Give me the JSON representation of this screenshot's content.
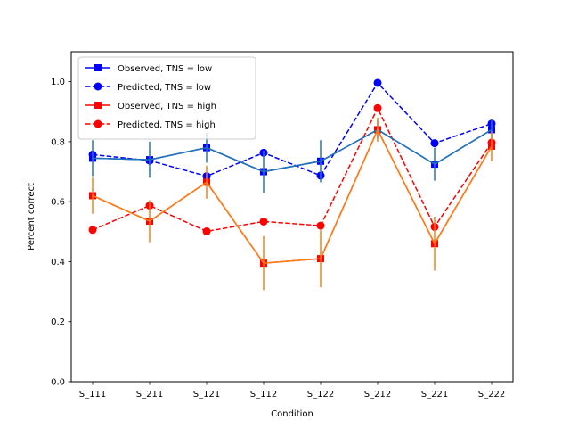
{
  "chart_data": {
    "type": "line",
    "title": "",
    "xlabel": "Condition",
    "ylabel": "Percent correct",
    "ylim": [
      0.0,
      1.1
    ],
    "yticks": [
      0.0,
      0.2,
      0.4,
      0.6,
      0.8,
      1.0
    ],
    "categories": [
      "S_111",
      "S_211",
      "S_121",
      "S_112",
      "S_122",
      "S_212",
      "S_221",
      "S_222"
    ],
    "legend": {
      "position": "top-left"
    },
    "series": [
      {
        "name": "Observed, TNS = low",
        "style": "solid",
        "marker": "square",
        "color": "#0000ff",
        "values": [
          0.745,
          0.74,
          0.78,
          0.7,
          0.735,
          0.84,
          0.725,
          0.84
        ]
      },
      {
        "name": "Predicted, TNS = low",
        "style": "dashed",
        "marker": "circle",
        "color": "#0000ff",
        "values": [
          0.757,
          0.737,
          0.685,
          0.763,
          0.687,
          0.996,
          0.795,
          0.86
        ]
      },
      {
        "name": "Observed, TNS = high",
        "style": "solid",
        "marker": "square",
        "color": "#ff0000",
        "values": [
          0.62,
          0.535,
          0.665,
          0.395,
          0.41,
          0.84,
          0.46,
          0.785
        ]
      },
      {
        "name": "Predicted, TNS = high",
        "style": "dashed",
        "marker": "circle",
        "color": "#ff0000",
        "values": [
          0.506,
          0.587,
          0.501,
          0.534,
          0.52,
          0.912,
          0.516,
          0.797
        ]
      }
    ],
    "error_bars": [
      {
        "of": "Observed, TNS = low",
        "color": "#1f77b4",
        "values": [
          0.745,
          0.74,
          0.78,
          0.7,
          0.735,
          0.84,
          0.725,
          0.84
        ],
        "errors": [
          0.06,
          0.06,
          0.05,
          0.07,
          0.07,
          0.03,
          0.055,
          0.035
        ]
      },
      {
        "of": "Observed, TNS = high",
        "color": "#ff7f0e",
        "values": [
          0.62,
          0.535,
          0.665,
          0.395,
          0.41,
          0.84,
          0.46,
          0.785
        ],
        "errors": [
          0.06,
          0.07,
          0.055,
          0.09,
          0.095,
          0.04,
          0.09,
          0.05
        ]
      }
    ]
  }
}
